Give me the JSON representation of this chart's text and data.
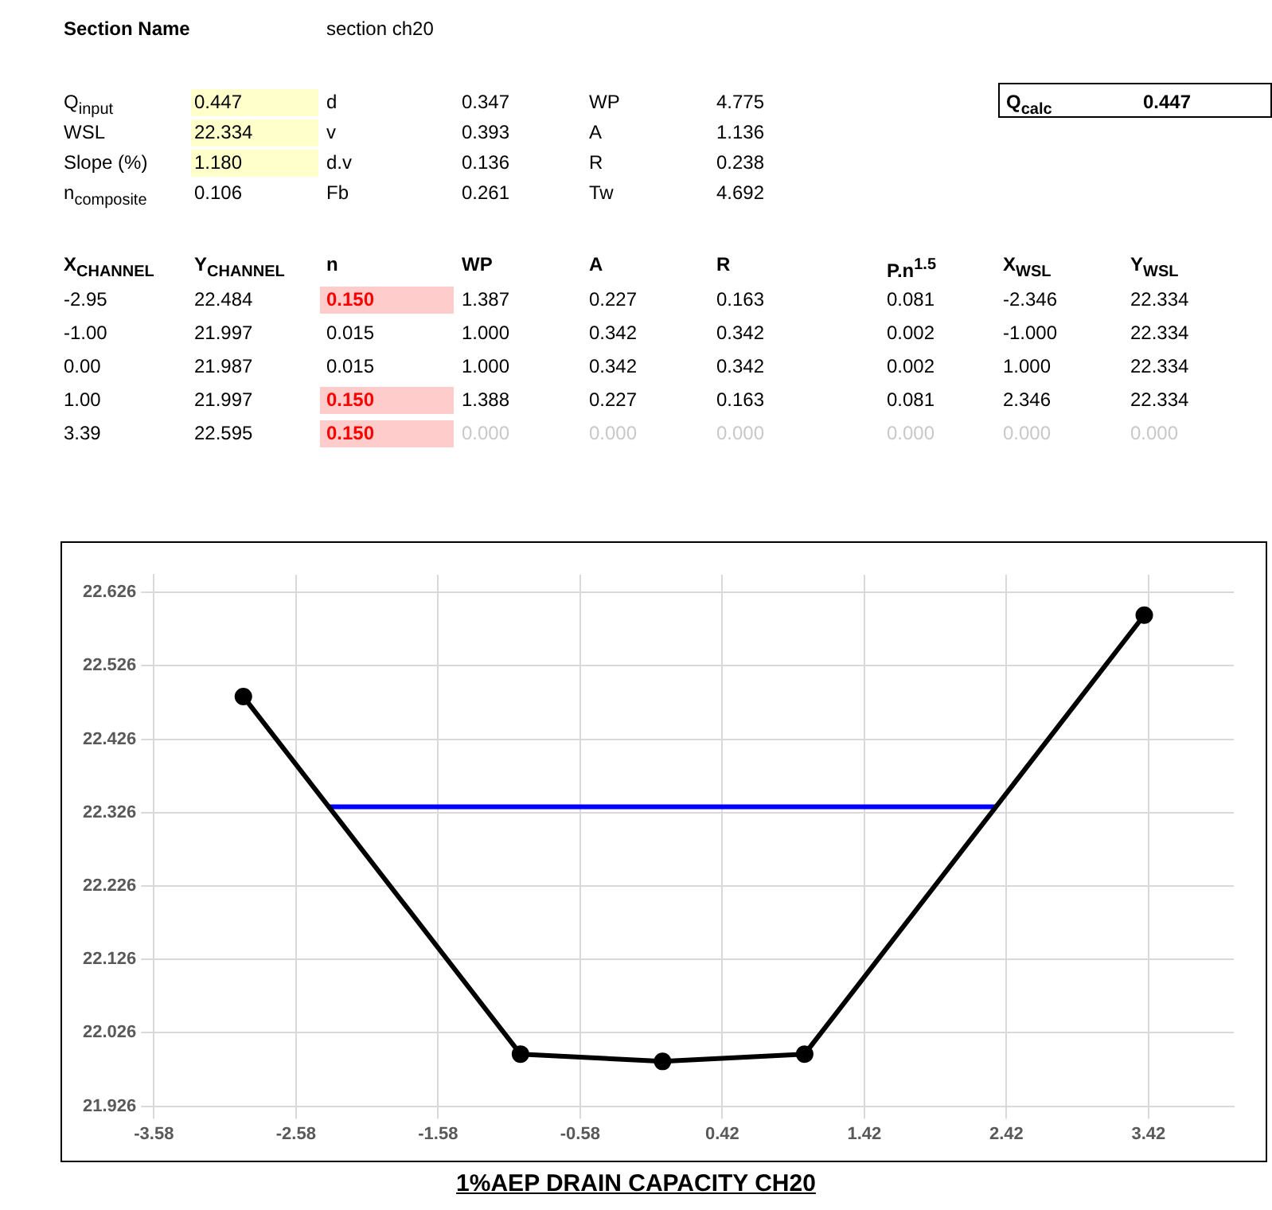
{
  "chart_data": [
    {
      "type": "other",
      "annotations": [
        "Section Name",
        "section ch20",
        "Q$_{input}$",
        "0.447",
        "d",
        "0.347",
        "WP",
        "4.775",
        "WSL",
        "22.334",
        "v",
        "0.393",
        "A",
        "1.136",
        "Slope (%)",
        "1.180",
        "d.v",
        "0.136",
        "R",
        "0.238",
        "n$_{composite}$",
        "0.106",
        "Fb",
        "0.261",
        "Tw",
        "4.692",
        "Q$_{calc}$",
        "0.447",
        "X$_{CHANNEL}$",
        "Y$_{CHANNEL}$",
        "n",
        "WP",
        "A",
        "R",
        "P.n$^{1.5}$",
        "X$_{WSL}$",
        "Y$_{WSL}$",
        "-2.95",
        "22.484",
        "0.150",
        "1.387",
        "0.227",
        "0.163",
        "0.081",
        "-2.346",
        "22.334",
        "-1.00",
        "21.997",
        "0.015",
        "1.000",
        "0.342",
        "0.342",
        "0.002",
        "-1.000",
        "22.334",
        "0.00",
        "21.987",
        "0.015",
        "1.000",
        "0.342",
        "0.342",
        "0.002",
        "1.000",
        "22.334",
        "1.00",
        "21.997",
        "0.150",
        "1.388",
        "0.227",
        "0.163",
        "0.081",
        "2.346",
        "22.334",
        "3.39",
        "22.595",
        "0.150",
        "0.000",
        "0.000",
        "0.000",
        "0.000",
        "0.000",
        "0.000"
      ]
    },
    {
      "type": "line",
      "title": "1%AEP DRAIN CAPACITY CH20",
      "grid": true,
      "legend": false,
      "xlim": [
        -3.58,
        4.02
      ],
      "xticks": [
        -3.58,
        -2.58,
        -1.58,
        -0.58,
        0.42,
        1.42,
        2.42,
        3.42
      ],
      "ylim": [
        21.926,
        22.65
      ],
      "yticks": [
        21.926,
        22.026,
        22.126,
        22.226,
        22.326,
        22.426,
        22.526,
        22.626
      ],
      "series": [
        {
          "color": "#000000",
          "marker": "circle",
          "x": [
            -2.95,
            -1.0,
            0.0,
            1.0,
            3.39
          ],
          "values": [
            22.484,
            21.997,
            21.987,
            21.997,
            22.595
          ]
        },
        {
          "color": "#0000ff",
          "marker": "none",
          "x": [
            -2.346,
            -1.0,
            1.0,
            2.346
          ],
          "values": [
            22.334,
            22.334,
            22.334,
            22.334
          ]
        }
      ]
    }
  ]
}
